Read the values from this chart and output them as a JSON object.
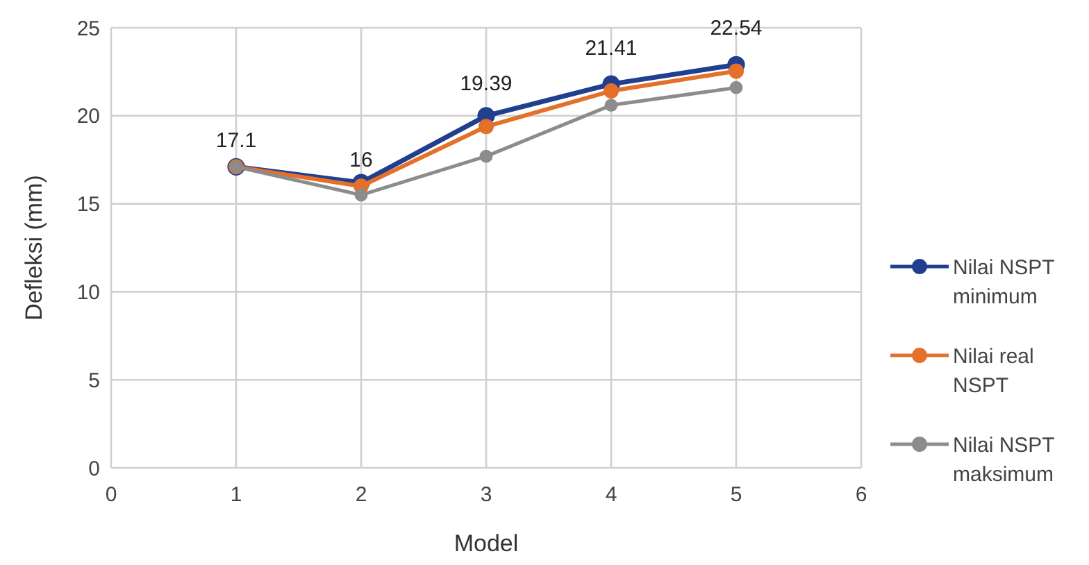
{
  "chart_data": {
    "type": "line",
    "xlabel": "Model",
    "ylabel": "Defleksi (mm)",
    "x": [
      1,
      2,
      3,
      4,
      5
    ],
    "xlim": [
      0,
      6
    ],
    "xticks": [
      0,
      1,
      2,
      3,
      4,
      5,
      6
    ],
    "ylim": [
      0,
      25
    ],
    "yticks": [
      0,
      5,
      10,
      15,
      20,
      25
    ],
    "grid": true,
    "legend": "right",
    "marker": "circle",
    "series": [
      {
        "name": "Nilai NSPT minimum",
        "color": "#203f8f",
        "values": [
          17.1,
          16.2,
          20.0,
          21.8,
          22.9
        ]
      },
      {
        "name": "Nilai real NSPT",
        "color": "#e4702a",
        "values": [
          17.1,
          16,
          19.39,
          21.41,
          22.54
        ],
        "value_labels": [
          "17.1",
          "16",
          "19.39",
          "21.41",
          "22.54"
        ]
      },
      {
        "name": "Nilai NSPT maksimum",
        "color": "#8c8c8c",
        "values": [
          17.1,
          15.5,
          17.7,
          20.6,
          21.6
        ]
      }
    ]
  }
}
